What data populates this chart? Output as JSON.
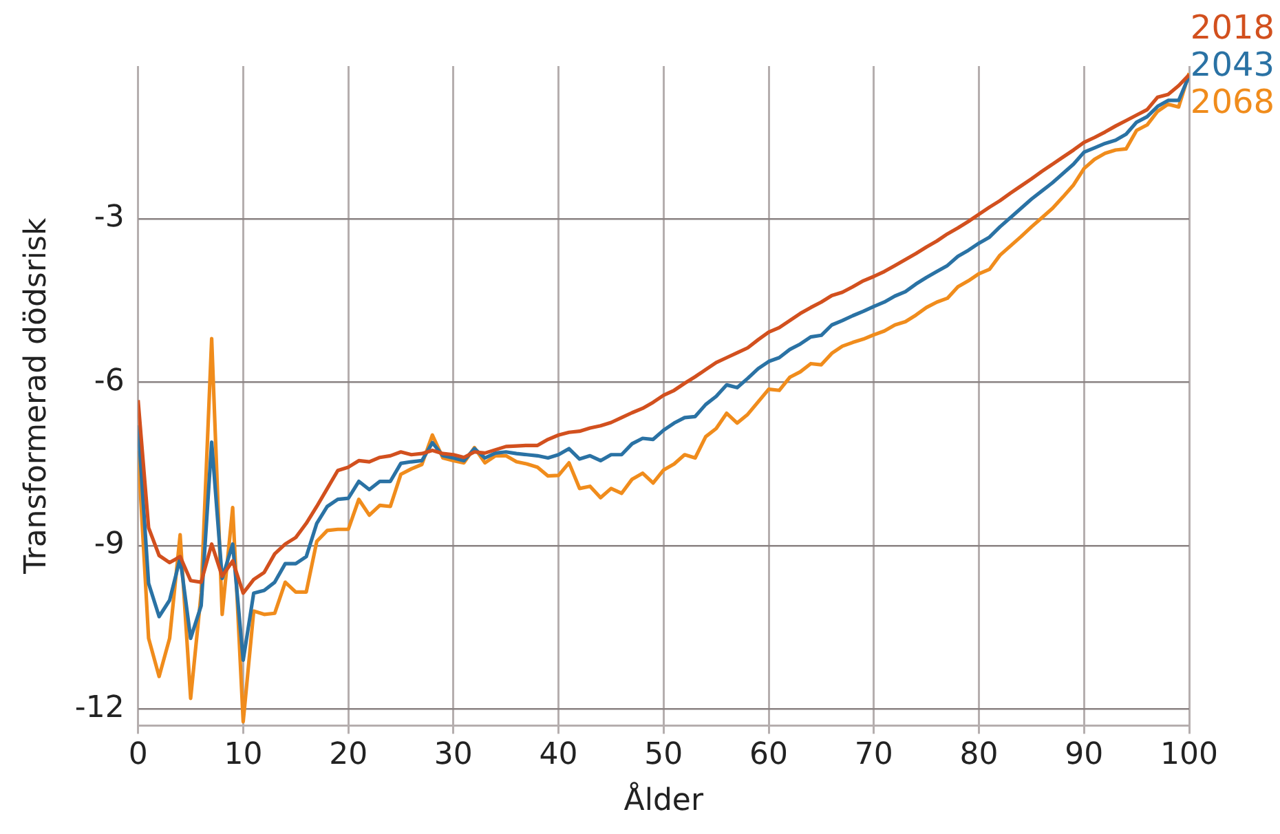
{
  "chart_data": {
    "type": "line",
    "xlabel": "Ålder",
    "ylabel": "Transformerad dödsrisk",
    "x": [
      0,
      1,
      2,
      3,
      4,
      5,
      6,
      7,
      8,
      9,
      10,
      11,
      12,
      13,
      14,
      15,
      16,
      17,
      18,
      19,
      20,
      21,
      22,
      23,
      24,
      25,
      26,
      27,
      28,
      29,
      30,
      31,
      32,
      33,
      34,
      35,
      36,
      37,
      38,
      39,
      40,
      41,
      42,
      43,
      44,
      45,
      46,
      47,
      48,
      49,
      50,
      51,
      52,
      53,
      54,
      55,
      56,
      57,
      58,
      59,
      60,
      61,
      62,
      63,
      64,
      65,
      66,
      67,
      68,
      69,
      70,
      71,
      72,
      73,
      74,
      75,
      76,
      77,
      78,
      79,
      80,
      81,
      82,
      83,
      84,
      85,
      86,
      87,
      88,
      89,
      90,
      91,
      92,
      93,
      94,
      95,
      96,
      97,
      98,
      99,
      100
    ],
    "xlim": [
      0,
      100
    ],
    "xticks": [
      0,
      10,
      20,
      30,
      40,
      50,
      60,
      70,
      80,
      90,
      100
    ],
    "ylim": [
      -12.3,
      -0.2
    ],
    "yticks": [
      -12,
      -9,
      -6,
      -3
    ],
    "grid": true,
    "series": [
      {
        "name": "2018",
        "color": "#d2501e",
        "values": [
          -6.33,
          -8.67,
          -9.18,
          -9.31,
          -9.2,
          -9.64,
          -9.67,
          -8.97,
          -9.56,
          -9.28,
          -9.87,
          -9.62,
          -9.49,
          -9.15,
          -8.97,
          -8.85,
          -8.59,
          -8.28,
          -7.95,
          -7.62,
          -7.56,
          -7.44,
          -7.46,
          -7.38,
          -7.35,
          -7.28,
          -7.33,
          -7.31,
          -7.25,
          -7.31,
          -7.33,
          -7.38,
          -7.28,
          -7.3,
          -7.24,
          -7.18,
          -7.17,
          -7.16,
          -7.16,
          -7.05,
          -6.97,
          -6.92,
          -6.9,
          -6.84,
          -6.8,
          -6.74,
          -6.65,
          -6.56,
          -6.48,
          -6.37,
          -6.24,
          -6.15,
          -6.02,
          -5.9,
          -5.77,
          -5.64,
          -5.55,
          -5.46,
          -5.37,
          -5.22,
          -5.08,
          -5.0,
          -4.87,
          -4.74,
          -4.63,
          -4.53,
          -4.41,
          -4.35,
          -4.25,
          -4.14,
          -4.06,
          -3.97,
          -3.86,
          -3.75,
          -3.64,
          -3.52,
          -3.41,
          -3.28,
          -3.17,
          -3.05,
          -2.92,
          -2.79,
          -2.67,
          -2.53,
          -2.4,
          -2.27,
          -2.13,
          -2.0,
          -1.87,
          -1.74,
          -1.6,
          -1.51,
          -1.41,
          -1.3,
          -1.2,
          -1.1,
          -1.0,
          -0.77,
          -0.72,
          -0.56,
          -0.36
        ]
      },
      {
        "name": "2043",
        "color": "#2a72a4",
        "values": [
          -6.79,
          -9.69,
          -10.3,
          -10.0,
          -9.23,
          -10.7,
          -10.1,
          -7.1,
          -9.6,
          -8.97,
          -11.1,
          -9.87,
          -9.82,
          -9.67,
          -9.33,
          -9.33,
          -9.2,
          -8.59,
          -8.28,
          -8.15,
          -8.13,
          -7.82,
          -7.97,
          -7.82,
          -7.82,
          -7.49,
          -7.46,
          -7.44,
          -7.11,
          -7.35,
          -7.39,
          -7.44,
          -7.22,
          -7.39,
          -7.3,
          -7.28,
          -7.31,
          -7.33,
          -7.35,
          -7.39,
          -7.33,
          -7.22,
          -7.41,
          -7.35,
          -7.44,
          -7.33,
          -7.33,
          -7.13,
          -7.03,
          -7.05,
          -6.88,
          -6.75,
          -6.65,
          -6.63,
          -6.41,
          -6.26,
          -6.05,
          -6.1,
          -5.93,
          -5.75,
          -5.62,
          -5.55,
          -5.4,
          -5.3,
          -5.17,
          -5.14,
          -4.95,
          -4.87,
          -4.78,
          -4.7,
          -4.61,
          -4.53,
          -4.42,
          -4.34,
          -4.2,
          -4.08,
          -3.97,
          -3.86,
          -3.69,
          -3.58,
          -3.45,
          -3.34,
          -3.15,
          -2.98,
          -2.81,
          -2.64,
          -2.49,
          -2.34,
          -2.17,
          -2.0,
          -1.78,
          -1.7,
          -1.62,
          -1.56,
          -1.45,
          -1.23,
          -1.13,
          -0.94,
          -0.83,
          -0.83,
          -0.38
        ]
      },
      {
        "name": "2068",
        "color": "#f08c1c",
        "values": [
          -7.26,
          -10.7,
          -11.4,
          -10.7,
          -8.8,
          -11.8,
          -9.87,
          -5.2,
          -10.26,
          -8.3,
          -12.23,
          -10.2,
          -10.26,
          -10.24,
          -9.67,
          -9.85,
          -9.85,
          -8.92,
          -8.72,
          -8.7,
          -8.7,
          -8.15,
          -8.44,
          -8.26,
          -8.28,
          -7.69,
          -7.59,
          -7.51,
          -6.97,
          -7.39,
          -7.44,
          -7.48,
          -7.2,
          -7.48,
          -7.35,
          -7.35,
          -7.46,
          -7.5,
          -7.56,
          -7.72,
          -7.71,
          -7.48,
          -7.95,
          -7.91,
          -8.12,
          -7.95,
          -8.04,
          -7.78,
          -7.67,
          -7.85,
          -7.61,
          -7.5,
          -7.33,
          -7.39,
          -7.0,
          -6.85,
          -6.57,
          -6.75,
          -6.59,
          -6.36,
          -6.13,
          -6.15,
          -5.91,
          -5.81,
          -5.66,
          -5.68,
          -5.47,
          -5.34,
          -5.27,
          -5.21,
          -5.13,
          -5.06,
          -4.95,
          -4.89,
          -4.77,
          -4.63,
          -4.53,
          -4.46,
          -4.25,
          -4.14,
          -4.01,
          -3.93,
          -3.67,
          -3.5,
          -3.33,
          -3.15,
          -2.98,
          -2.81,
          -2.6,
          -2.38,
          -2.08,
          -1.91,
          -1.8,
          -1.74,
          -1.72,
          -1.38,
          -1.28,
          -1.03,
          -0.9,
          -0.95,
          -0.33
        ]
      }
    ]
  }
}
